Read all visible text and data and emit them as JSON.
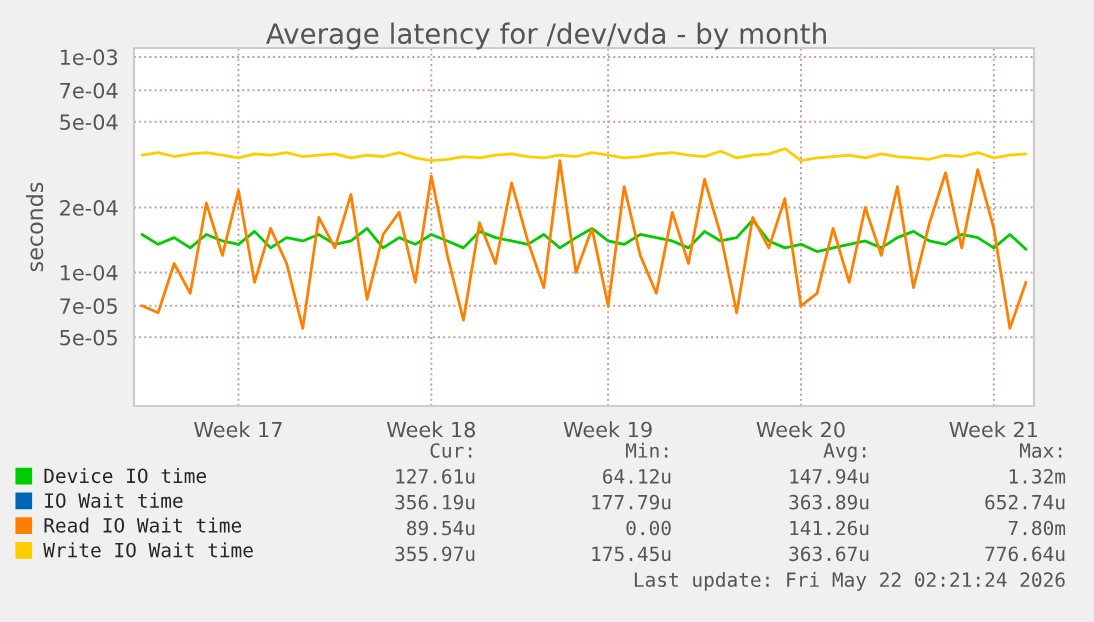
{
  "chart_data": {
    "type": "line",
    "title": "Average latency for /dev/vda - by month",
    "ylabel": "seconds",
    "log": true,
    "grid": true,
    "legend": "bottom left",
    "line_style": "solid",
    "marker": "none",
    "categories": [
      null,
      null,
      null,
      null,
      null,
      null,
      "Week 17",
      null,
      null,
      null,
      null,
      null,
      null,
      null,
      null,
      null,
      null,
      null,
      "Week 18",
      null,
      null,
      null,
      null,
      null,
      null,
      null,
      null,
      null,
      null,
      "Week 19",
      null,
      null,
      null,
      null,
      null,
      null,
      null,
      null,
      null,
      null,
      null,
      "Week 20",
      null,
      null,
      null,
      null,
      null,
      null,
      null,
      null,
      null,
      null,
      null,
      "Week 21",
      null,
      null
    ],
    "ylim": [
      2.4e-05,
      0.0011
    ],
    "yticks": [
      {
        "value": 5e-05,
        "label": "5e-05"
      },
      {
        "value": 7e-05,
        "label": "7e-05"
      },
      {
        "value": 0.0001,
        "label": "1e-04"
      },
      {
        "value": 0.0002,
        "label": "2e-04"
      },
      {
        "value": 0.0005,
        "label": "5e-04"
      },
      {
        "value": 0.0007,
        "label": "7e-04"
      },
      {
        "value": 0.001,
        "label": "1e-03"
      }
    ],
    "series": [
      {
        "name": "Device IO time",
        "color": "#00cc00",
        "values": [
          0.00015,
          0.000135,
          0.000145,
          0.00013,
          0.00015,
          0.00014,
          0.000135,
          0.000155,
          0.00013,
          0.000145,
          0.00014,
          0.00015,
          0.000135,
          0.00014,
          0.00016,
          0.00013,
          0.000145,
          0.000135,
          0.00015,
          0.00014,
          0.00013,
          0.000155,
          0.000145,
          0.00014,
          0.000135,
          0.00015,
          0.00013,
          0.000145,
          0.00016,
          0.00014,
          0.000135,
          0.00015,
          0.000145,
          0.00014,
          0.00013,
          0.000155,
          0.00014,
          0.000145,
          0.000175,
          0.00014,
          0.00013,
          0.000135,
          0.000125,
          0.00013,
          0.000135,
          0.00014,
          0.00013,
          0.000145,
          0.000155,
          0.00014,
          0.000135,
          0.00015,
          0.000145,
          0.00013,
          0.00015,
          0.000128
        ]
      },
      {
        "name": "IO Wait time",
        "color": "#0066b3",
        "values": [
          null,
          null,
          null,
          null,
          null,
          null,
          null,
          null,
          null,
          null,
          null,
          null,
          null,
          null,
          null,
          null,
          null,
          null,
          null,
          null,
          null,
          null,
          null,
          null,
          null,
          null,
          null,
          null,
          null,
          null,
          null,
          null,
          null,
          null,
          null,
          null,
          null,
          null,
          null,
          null,
          null,
          null,
          null,
          null,
          null,
          null,
          null,
          null,
          null,
          null,
          null,
          null,
          null,
          null,
          null,
          null
        ]
      },
      {
        "name": "Read IO Wait time",
        "color": "#ff8000",
        "values": [
          7e-05,
          6.5e-05,
          0.00011,
          8e-05,
          0.00021,
          0.00012,
          0.00024,
          9e-05,
          0.00016,
          0.00011,
          5.5e-05,
          0.00018,
          0.00013,
          0.00023,
          7.5e-05,
          0.00015,
          0.00019,
          9e-05,
          0.00028,
          0.00012,
          6e-05,
          0.00017,
          0.00011,
          0.00026,
          0.00014,
          8.5e-05,
          0.00033,
          0.0001,
          0.00016,
          7e-05,
          0.00025,
          0.00012,
          8e-05,
          0.00019,
          0.00011,
          0.00027,
          0.00015,
          6.5e-05,
          0.00018,
          0.00013,
          0.00022,
          7e-05,
          8e-05,
          0.00016,
          9e-05,
          0.0002,
          0.00012,
          0.00025,
          8.5e-05,
          0.00017,
          0.00029,
          0.00013,
          0.0003,
          0.00016,
          5.5e-05,
          9e-05
        ]
      },
      {
        "name": "Write IO Wait time",
        "color": "#ffcc00",
        "values": [
          0.00035,
          0.00036,
          0.000345,
          0.000355,
          0.00036,
          0.00035,
          0.00034,
          0.000355,
          0.00035,
          0.00036,
          0.000345,
          0.00035,
          0.000355,
          0.00034,
          0.00035,
          0.000345,
          0.00036,
          0.00034,
          0.00033,
          0.000335,
          0.000345,
          0.00034,
          0.00035,
          0.000355,
          0.000345,
          0.00034,
          0.00035,
          0.000345,
          0.00036,
          0.00035,
          0.00034,
          0.000345,
          0.000355,
          0.00036,
          0.00035,
          0.000345,
          0.000365,
          0.00034,
          0.00035,
          0.000355,
          0.000375,
          0.00033,
          0.00034,
          0.000345,
          0.00035,
          0.00034,
          0.000355,
          0.000345,
          0.00034,
          0.000335,
          0.00035,
          0.000345,
          0.00036,
          0.00034,
          0.00035,
          0.000355
        ]
      }
    ],
    "annotations": [
      "Cur:",
      "Min:",
      "Avg:",
      "Max:",
      "127.61u",
      "64.12u",
      "147.94u",
      "1.32m",
      "356.19u",
      "177.79u",
      "363.89u",
      "652.74u",
      "89.54u",
      "0.00",
      "141.26u",
      "7.80m",
      "355.97u",
      "175.45u",
      "363.67u",
      "776.64u",
      "Last update: Fri May 22 02:21:24 2026"
    ]
  }
}
